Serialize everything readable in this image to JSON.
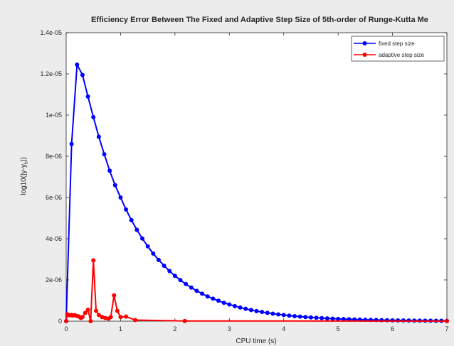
{
  "chart_data": {
    "type": "line",
    "title": "Efficiency Error Between The Fixed and Adaptive Step Size of 5th-order of Runge-Kutta Me",
    "xlabel": "CPU time (s)",
    "ylabel": {
      "main": "log10(|y-y",
      "subscript": "h",
      "end": "|)"
    },
    "xlim": [
      0,
      7
    ],
    "ylim": [
      0,
      1.4e-05
    ],
    "xticks": [
      0,
      1,
      2,
      3,
      4,
      5,
      6,
      7
    ],
    "xtick_labels": [
      "0",
      "1",
      "2",
      "3",
      "4",
      "5",
      "6",
      "7"
    ],
    "yticks": [
      0,
      2e-06,
      4e-06,
      6e-06,
      8e-06,
      1e-05,
      1.2e-05,
      1.4e-05
    ],
    "ytick_labels": [
      "0",
      "2e-06",
      "4e-06",
      "6e-06",
      "8e-06",
      "1e-05",
      "1.2e-05",
      "1.4e-05"
    ],
    "grid": false,
    "legend_position": "top-right",
    "series": [
      {
        "name": "fixed step size",
        "color": "#0000ff",
        "marker": "circle",
        "x": [
          0.0,
          0.1,
          0.2,
          0.3,
          0.4,
          0.5,
          0.6,
          0.7,
          0.8,
          0.9,
          1.0,
          1.1,
          1.2,
          1.3,
          1.4,
          1.5,
          1.6,
          1.7,
          1.8,
          1.9,
          2.0,
          2.1,
          2.2,
          2.3,
          2.4,
          2.5,
          2.6,
          2.7,
          2.8,
          2.9,
          3.0,
          3.1,
          3.2,
          3.3,
          3.4,
          3.5,
          3.6,
          3.7,
          3.8,
          3.9,
          4.0,
          4.1,
          4.2,
          4.3,
          4.4,
          4.5,
          4.6,
          4.7,
          4.8,
          4.9,
          5.0,
          5.1,
          5.2,
          5.3,
          5.4,
          5.5,
          5.6,
          5.7,
          5.8,
          5.9,
          6.0,
          6.1,
          6.2,
          6.3,
          6.4,
          6.5,
          6.6,
          6.7,
          6.8,
          6.9,
          7.0
        ],
        "y": [
          0,
          8.6e-06,
          1.245e-05,
          1.195e-05,
          1.09e-05,
          9.9e-06,
          8.95e-06,
          8.1e-06,
          7.3e-06,
          6.6e-06,
          6e-06,
          5.42e-06,
          4.9e-06,
          4.43e-06,
          4.01e-06,
          3.63e-06,
          3.28e-06,
          2.97e-06,
          2.69e-06,
          2.43e-06,
          2.2e-06,
          1.99e-06,
          1.8e-06,
          1.63e-06,
          1.47e-06,
          1.33e-06,
          1.2e-06,
          1.09e-06,
          9.9e-07,
          8.9e-07,
          8.1e-07,
          7.3e-07,
          6.6e-07,
          5.97e-07,
          5.4e-07,
          4.89e-07,
          4.42e-07,
          4e-07,
          3.62e-07,
          3.27e-07,
          2.96e-07,
          2.68e-07,
          2.42e-07,
          2.19e-07,
          1.98e-07,
          1.8e-07,
          1.62e-07,
          1.47e-07,
          1.33e-07,
          1.2e-07,
          1.09e-07,
          9.8e-08,
          8.9e-08,
          8e-08,
          7.3e-08,
          6.6e-08,
          5.9e-08,
          5.4e-08,
          4.9e-08,
          4.4e-08,
          4e-08,
          3.6e-08,
          3.3e-08,
          2.9e-08,
          2.7e-08,
          2.4e-08,
          2.2e-08,
          2e-08,
          1.8e-08,
          1.6e-08,
          1.5e-08
        ]
      },
      {
        "name": "adaptive step size",
        "color": "#ff0000",
        "marker": "circle",
        "x": [
          0.0,
          0.02,
          0.05,
          0.08,
          0.1,
          0.13,
          0.16,
          0.2,
          0.23,
          0.27,
          0.3,
          0.35,
          0.4,
          0.45,
          0.5,
          0.55,
          0.6,
          0.66,
          0.72,
          0.78,
          0.82,
          0.88,
          0.94,
          1.0,
          1.1,
          1.27,
          2.18,
          7.0
        ],
        "y": [
          0,
          3.3e-07,
          3e-07,
          2.8e-07,
          3e-07,
          2.7e-07,
          2.9e-07,
          2.5e-07,
          2.3e-07,
          1.5e-07,
          2e-07,
          4e-07,
          5.5e-07,
          0,
          2.95e-06,
          5e-07,
          3e-07,
          2e-07,
          1.5e-07,
          1.2e-07,
          2e-07,
          1.25e-06,
          5e-07,
          2e-07,
          2.2e-07,
          5e-08,
          1e-08,
          0
        ]
      }
    ]
  }
}
